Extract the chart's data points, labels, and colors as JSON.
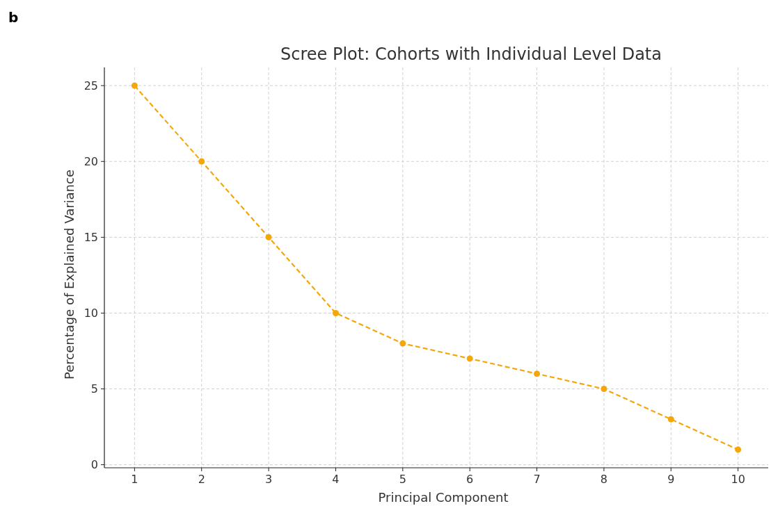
{
  "chart_data": {
    "type": "line",
    "title": "Scree Plot: Cohorts with Individual Level Data",
    "xlabel": "Principal Component",
    "ylabel": "Percentage of Explained Variance",
    "annotations": [
      "b"
    ],
    "x": [
      1,
      2,
      3,
      4,
      5,
      6,
      7,
      8,
      9,
      10
    ],
    "series": [
      {
        "color": "#f5a70a",
        "values": [
          25,
          20,
          15,
          10,
          8,
          7,
          6,
          5,
          3,
          1
        ]
      }
    ],
    "xlim": [
      0.55,
      10.45
    ],
    "xticks": [
      1,
      2,
      3,
      4,
      5,
      6,
      7,
      8,
      9,
      10
    ],
    "ylim": [
      -0.2,
      26.2
    ],
    "yticks": [
      0,
      5,
      10,
      15,
      20,
      25
    ],
    "grid": true,
    "marker": "circle",
    "line_style": "dashed"
  }
}
